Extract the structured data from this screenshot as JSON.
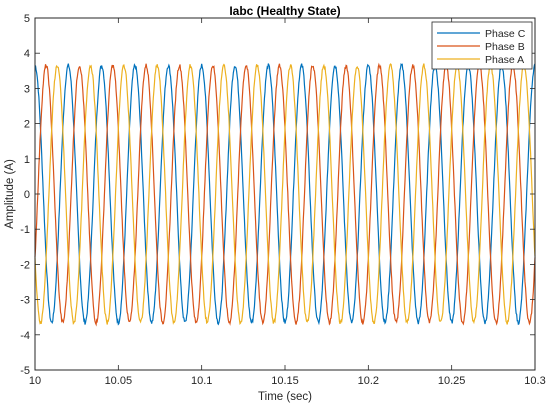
{
  "chart_data": {
    "type": "line",
    "title": "Iabc (Healthy State)",
    "xlabel": "Time (sec)",
    "ylabel": "Amplitude (A)",
    "xlim": [
      10,
      10.3
    ],
    "ylim": [
      -5,
      5
    ],
    "xticks": [
      10,
      10.05,
      10.1,
      10.15,
      10.2,
      10.25,
      10.3
    ],
    "xtick_labels": [
      "10",
      "10.05",
      "10.1",
      "10.15",
      "10.2",
      "10.25",
      "10.3"
    ],
    "yticks": [
      5,
      4,
      3,
      2,
      1,
      0,
      -1,
      -2,
      -3,
      -4,
      -5
    ],
    "ytick_labels": [
      "5",
      "4",
      "3",
      "2",
      "1",
      "0",
      "-1",
      "-2",
      "-3",
      "-4",
      "-5"
    ],
    "grid": false,
    "legend_position": "top-right",
    "frequency_hz": 50,
    "series": [
      {
        "name": "Phase C",
        "color": "#0072BD",
        "amplitude": 3.65,
        "phase_deg": 90
      },
      {
        "name": "Phase B",
        "color": "#D95319",
        "amplitude": 3.65,
        "phase_deg": -30
      },
      {
        "name": "Phase A",
        "color": "#EDB120",
        "amplitude": 3.65,
        "phase_deg": 210
      }
    ]
  }
}
